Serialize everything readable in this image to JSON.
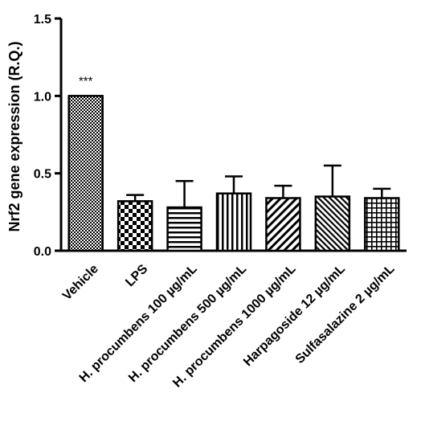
{
  "chart_data": {
    "type": "bar",
    "title": "",
    "xlabel": "",
    "ylabel": "Nrf2 gene expression (R.Q.)",
    "ylim": [
      0,
      1.5
    ],
    "yticks": [
      "0.0",
      "0.5",
      "1.0",
      "1.5"
    ],
    "grid": false,
    "categories": [
      "Vehicle",
      "LPS",
      "H. procumbens 100 µg/mL",
      "H. procumbens 500 µg/mL",
      "H. procumbens 1000 µg/mL",
      "Harpagoside 12 µg/mL",
      "Sulfasalazine 2 µg/mL"
    ],
    "values": [
      1.0,
      0.32,
      0.28,
      0.37,
      0.34,
      0.35,
      0.34
    ],
    "errors": [
      0,
      0.04,
      0.17,
      0.11,
      0.08,
      0.2,
      0.06
    ],
    "patterns": [
      "fine-checker",
      "checker",
      "horizontal-lines",
      "vertical-lines",
      "diagonal-lines",
      "dense-diagonal-lines",
      "grid"
    ],
    "annotations": [
      {
        "category": "Vehicle",
        "text": "***"
      }
    ]
  }
}
